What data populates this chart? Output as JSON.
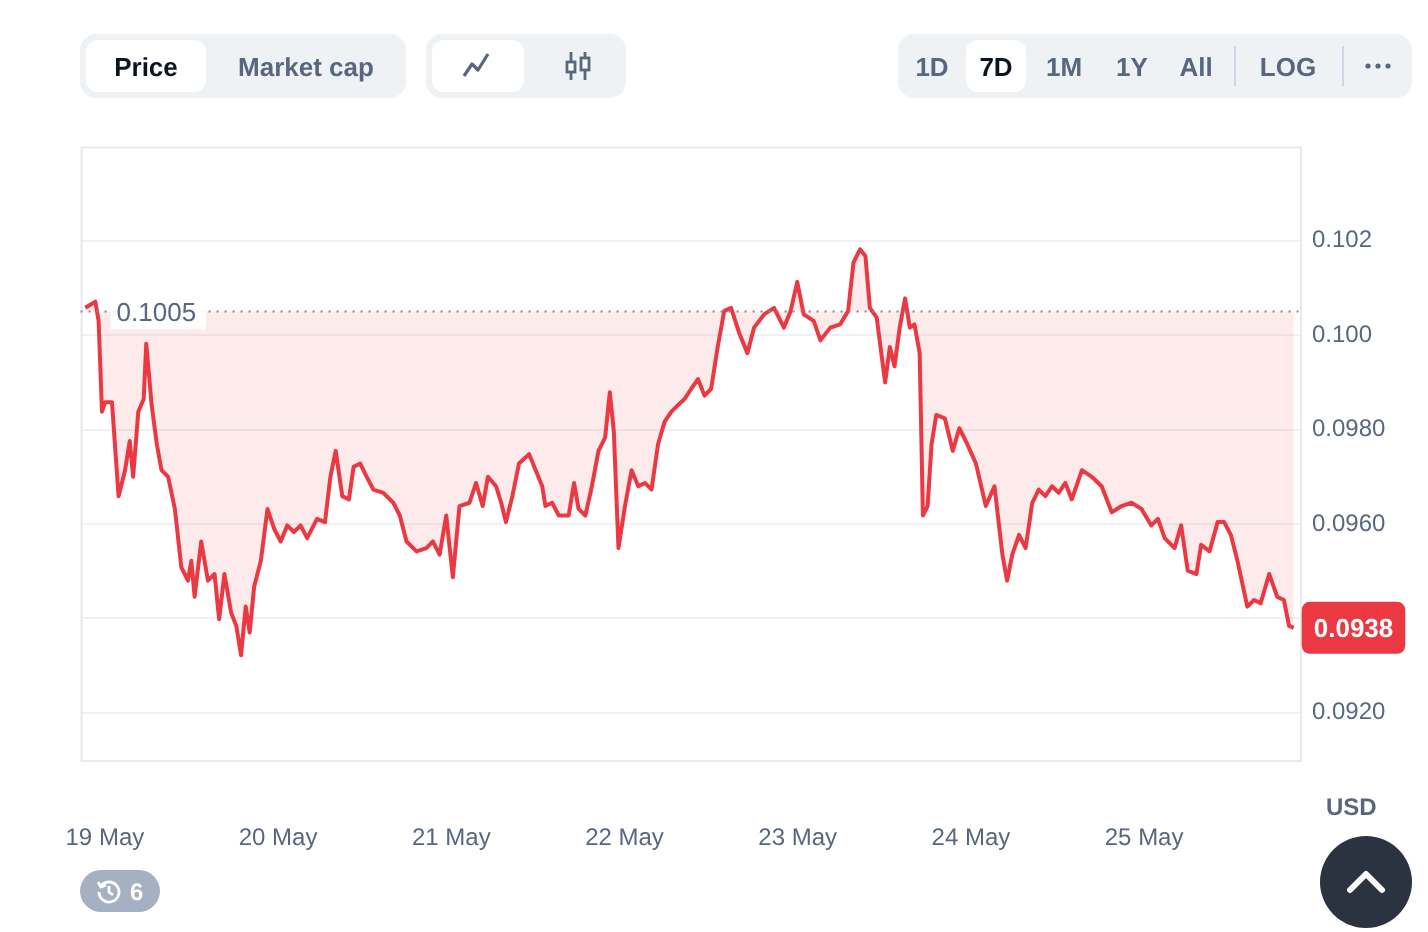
{
  "chart_data": {
    "type": "line",
    "ylabel": "USD",
    "marker": "none",
    "grid": "y",
    "x": [
      "--05-18T21:17",
      "--05-18T22:41",
      "--05-18T23:08",
      "--05-18T23:36",
      "--05-19T00:03",
      "--05-19T00:59",
      "--05-19T01:54",
      "--05-19T02:48",
      "--05-19T03:27",
      "--05-19T03:55",
      "--05-19T04:38",
      "--05-19T05:23",
      "--05-19T05:44",
      "--05-19T06:29",
      "--05-19T07:12",
      "--05-19T07:51",
      "--05-19T08:46",
      "--05-19T09:42",
      "--05-19T10:36",
      "--05-19T11:31",
      "--05-19T11:59",
      "--05-19T12:26",
      "--05-19T13:21",
      "--05-19T14:17",
      "--05-19T15:12",
      "--05-19T15:50",
      "--05-19T16:34",
      "--05-19T17:30",
      "--05-19T18:13",
      "--05-19T18:52",
      "--05-19T19:31",
      "--05-19T20:04",
      "--05-19T20:41",
      "--05-19T21:37",
      "--05-19T22:32",
      "--05-19T23:27",
      "--05-20T00:22",
      "--05-20T01:16",
      "--05-20T02:12",
      "--05-20T03:07",
      "--05-20T04:02",
      "--05-20T05:24",
      "--05-20T06:30",
      "--05-20T07:15",
      "--05-20T07:59",
      "--05-20T08:54",
      "--05-20T09:49",
      "--05-20T10:28",
      "--05-20T11:23",
      "--05-20T12:17",
      "--05-20T13:12",
      "--05-20T14:35",
      "--05-20T15:58",
      "--05-20T16:52",
      "--05-20T17:48",
      "--05-20T19:11",
      "--05-20T20:33",
      "--05-20T21:27",
      "--05-20T22:23",
      "--05-20T23:18",
      "--05-21T00:13",
      "--05-21T01:08",
      "--05-21T02:31",
      "--05-21T03:26",
      "--05-21T04:21",
      "--05-21T05:05",
      "--05-21T06:12",
      "--05-21T06:55",
      "--05-21T07:34",
      "--05-21T08:28",
      "--05-21T09:23",
      "--05-21T10:47",
      "--05-21T11:53",
      "--05-21T12:36",
      "--05-21T13:03",
      "--05-21T13:58",
      "--05-21T14:54",
      "--05-21T16:16",
      "--05-21T17:01",
      "--05-21T17:38",
      "--05-21T18:35",
      "--05-21T19:29",
      "--05-21T20:24",
      "--05-21T21:19",
      "--05-21T21:58",
      "--05-21T22:31",
      "--05-21T23:10",
      "--05-22T00:04",
      "--05-22T00:59",
      "--05-22T01:55",
      "--05-22T02:50",
      "--05-22T03:45",
      "--05-22T04:39",
      "--05-22T05:34",
      "--05-22T06:30",
      "--05-22T07:25",
      "--05-22T08:20",
      "--05-22T09:14",
      "--05-22T10:11",
      "--05-22T11:05",
      "--05-22T12:00",
      "--05-22T12:55",
      "--05-22T13:49",
      "--05-22T14:46",
      "--05-22T15:56",
      "--05-22T17:02",
      "--05-22T17:57",
      "--05-22T19:21",
      "--05-22T20:43",
      "--05-22T22:05",
      "--05-22T23:01",
      "--05-22T23:56",
      "--05-23T00:50",
      "--05-23T02:14",
      "--05-23T03:09",
      "--05-23T04:31",
      "--05-23T05:53",
      "--05-23T06:59",
      "--05-23T07:44",
      "--05-23T08:38",
      "--05-23T09:23",
      "--05-23T10:00",
      "--05-23T10:57",
      "--05-23T12:07",
      "--05-23T12:46",
      "--05-23T13:25",
      "--05-23T14:08",
      "--05-23T14:53",
      "--05-23T15:32",
      "--05-23T16:11",
      "--05-23T16:54",
      "--05-23T17:21",
      "--05-23T18:00",
      "--05-23T18:33",
      "--05-23T19:12",
      "--05-23T20:23",
      "--05-23T21:29",
      "--05-23T22:24",
      "--05-23T23:30",
      "--05-24T00:42",
      "--05-24T02:04",
      "--05-24T03:16",
      "--05-24T04:22",
      "--05-24T05:01",
      "--05-24T05:44",
      "--05-24T06:40",
      "--05-24T07:35",
      "--05-24T08:30",
      "--05-24T09:24",
      "--05-24T10:19",
      "--05-24T11:15",
      "--05-24T12:10",
      "--05-24T13:05",
      "--05-24T13:59",
      "--05-24T15:23",
      "--05-24T16:45",
      "--05-24T18:07",
      "--05-24T19:31",
      "--05-24T20:53",
      "--05-24T22:15",
      "--05-24T23:38",
      "--05-25T01:00",
      "--05-25T01:55",
      "--05-25T02:51",
      "--05-25T04:13",
      "--05-25T05:08",
      "--05-25T06:03",
      "--05-25T07:15",
      "--05-25T07:54",
      "--05-25T09:04",
      "--05-25T10:11",
      "--05-25T11:05",
      "--05-25T12:01",
      "--05-25T12:56",
      "--05-25T14:18",
      "--05-25T15:14",
      "--05-25T16:09",
      "--05-25T17:20",
      "--05-25T18:26",
      "--05-25T19:22",
      "--05-25T20:05",
      "--05-25T20:44"
    ],
    "series": [
      {
        "color": "#ea3943",
        "values": [
          0.10058,
          0.10071,
          0.1003,
          0.09838,
          0.09858,
          0.09858,
          0.09659,
          0.09714,
          0.09776,
          0.097,
          0.09838,
          0.09865,
          0.09982,
          0.09852,
          0.09769,
          0.09714,
          0.097,
          0.09632,
          0.09508,
          0.0948,
          0.09522,
          0.09446,
          0.09563,
          0.0948,
          0.09494,
          0.09398,
          0.09494,
          0.09412,
          0.09384,
          0.09322,
          0.09425,
          0.0937,
          0.09467,
          0.09522,
          0.09632,
          0.0959,
          0.09563,
          0.09597,
          0.09583,
          0.09597,
          0.0957,
          0.09611,
          0.09604,
          0.097,
          0.09755,
          0.09659,
          0.09652,
          0.09721,
          0.09728,
          0.097,
          0.09673,
          0.09666,
          0.09645,
          0.09618,
          0.09563,
          0.09542,
          0.09549,
          0.09563,
          0.09535,
          0.09618,
          0.09487,
          0.09638,
          0.09645,
          0.09687,
          0.09638,
          0.097,
          0.0968,
          0.09645,
          0.09604,
          0.09659,
          0.09728,
          0.09748,
          0.09707,
          0.0968,
          0.09638,
          0.09645,
          0.09618,
          0.09618,
          0.09687,
          0.09632,
          0.09618,
          0.0968,
          0.09755,
          0.09783,
          0.09879,
          0.09797,
          0.09549,
          0.09638,
          0.09714,
          0.0968,
          0.09687,
          0.09673,
          0.09769,
          0.09817,
          0.09838,
          0.09852,
          0.09865,
          0.09886,
          0.09907,
          0.09872,
          0.09886,
          0.09975,
          0.10051,
          0.10058,
          0.10003,
          0.09962,
          0.10016,
          0.10044,
          0.10058,
          0.10016,
          0.10051,
          0.10113,
          0.10044,
          0.1003,
          0.09989,
          0.10016,
          0.10023,
          0.10051,
          0.10154,
          0.10182,
          0.10168,
          0.10058,
          0.10037,
          0.099,
          0.09975,
          0.09934,
          0.10016,
          0.10078,
          0.10016,
          0.10023,
          0.09962,
          0.09618,
          0.09638,
          0.09769,
          0.09831,
          0.09824,
          0.09755,
          0.09803,
          0.09769,
          0.09728,
          0.09638,
          0.0968,
          0.09535,
          0.0948,
          0.09535,
          0.09577,
          0.09549,
          0.09645,
          0.09673,
          0.09659,
          0.0968,
          0.09666,
          0.09687,
          0.09652,
          0.09714,
          0.097,
          0.0968,
          0.09625,
          0.09638,
          0.09645,
          0.09632,
          0.09597,
          0.09611,
          0.0957,
          0.09549,
          0.09597,
          0.09501,
          0.09494,
          0.09556,
          0.09542,
          0.09604,
          0.09604,
          0.09577,
          0.09522,
          0.09425,
          0.09439,
          0.09432,
          0.09494,
          0.09446,
          0.09439,
          0.09384,
          0.0938
        ]
      }
    ],
    "xlim": [
      "--05-18T20:38",
      "--05-25T21:36"
    ],
    "xticks": [
      {
        "value": "--05-19",
        "label": "19 May"
      },
      {
        "value": "--05-20",
        "label": "20 May"
      },
      {
        "value": "--05-21",
        "label": "21 May"
      },
      {
        "value": "--05-22",
        "label": "22 May"
      },
      {
        "value": "--05-23",
        "label": "23 May"
      },
      {
        "value": "--05-24",
        "label": "24 May"
      },
      {
        "value": "--05-25",
        "label": "25 May"
      }
    ],
    "ylim": [
      0.091,
      0.104
    ],
    "yticks": [
      {
        "value": 0.092,
        "label": "0.0920"
      },
      {
        "value": 0.094,
        "label": null
      },
      {
        "value": 0.096,
        "label": "0.0960"
      },
      {
        "value": 0.098,
        "label": "0.0980"
      },
      {
        "value": 0.1,
        "label": "0.100"
      },
      {
        "value": 0.102,
        "label": "0.102"
      }
    ],
    "ref_lines": [
      {
        "axis": "y",
        "value": 0.1005,
        "label": "0.1005",
        "color": "#808a9d",
        "line_style": "dotted"
      }
    ],
    "annotations": [
      "Price",
      "Market cap",
      "1D",
      "7D",
      "1M",
      "1Y",
      "All",
      "LOG",
      "6",
      {
        "text": "0.0938",
        "x": "--05-25T20:44",
        "y": 0.0938
      }
    ]
  }
}
